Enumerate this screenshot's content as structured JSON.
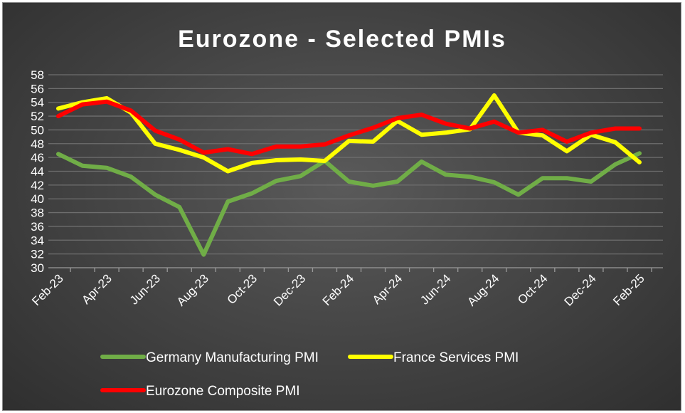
{
  "chart_data": {
    "type": "line",
    "title": "Eurozone - Selected PMIs",
    "xlabel": "",
    "ylabel": "",
    "ylim": [
      30,
      58
    ],
    "yticks": [
      30,
      32,
      34,
      36,
      38,
      40,
      42,
      44,
      46,
      48,
      50,
      52,
      54,
      56,
      58
    ],
    "grid": true,
    "legend_position": "bottom",
    "x": [
      "Feb-23",
      "Mar-23",
      "Apr-23",
      "May-23",
      "Jun-23",
      "Jul-23",
      "Aug-23",
      "Sep-23",
      "Oct-23",
      "Nov-23",
      "Dec-23",
      "Jan-24",
      "Feb-24",
      "Mar-24",
      "Apr-24",
      "May-24",
      "Jun-24",
      "Jul-24",
      "Aug-24",
      "Sep-24",
      "Oct-24",
      "Nov-24",
      "Dec-24",
      "Jan-25",
      "Feb-25"
    ],
    "x_tick_labels": [
      "Feb-23",
      "Apr-23",
      "Jun-23",
      "Aug-23",
      "Oct-23",
      "Dec-23",
      "Feb-24",
      "Apr-24",
      "Jun-24",
      "Aug-24",
      "Oct-24",
      "Dec-24",
      "Feb-25"
    ],
    "series": [
      {
        "name": "Germany Manufacturing PMI",
        "color": "#70ad47",
        "values": [
          46.5,
          44.8,
          44.5,
          43.2,
          40.6,
          38.8,
          31.9,
          39.6,
          40.8,
          42.6,
          43.3,
          45.5,
          42.5,
          41.9,
          42.5,
          45.4,
          43.5,
          43.2,
          42.4,
          40.6,
          43.0,
          43.0,
          42.5,
          45.0,
          46.6
        ]
      },
      {
        "name": "France Services PMI",
        "color": "#ffff00",
        "values": [
          53.1,
          54.0,
          54.6,
          52.5,
          48.0,
          47.1,
          46.0,
          44.0,
          45.2,
          45.6,
          45.7,
          45.5,
          48.4,
          48.3,
          51.3,
          49.3,
          49.6,
          50.1,
          55.0,
          49.6,
          49.2,
          46.9,
          49.3,
          48.2,
          45.3
        ]
      },
      {
        "name": "Eurozone Composite PMI",
        "color": "#ff0000",
        "values": [
          52.0,
          53.7,
          54.1,
          52.8,
          49.9,
          48.6,
          46.7,
          47.2,
          46.5,
          47.6,
          47.6,
          47.9,
          49.2,
          50.3,
          51.7,
          52.2,
          50.9,
          50.2,
          51.2,
          49.6,
          50.0,
          48.3,
          49.6,
          50.2,
          50.2
        ]
      }
    ]
  }
}
